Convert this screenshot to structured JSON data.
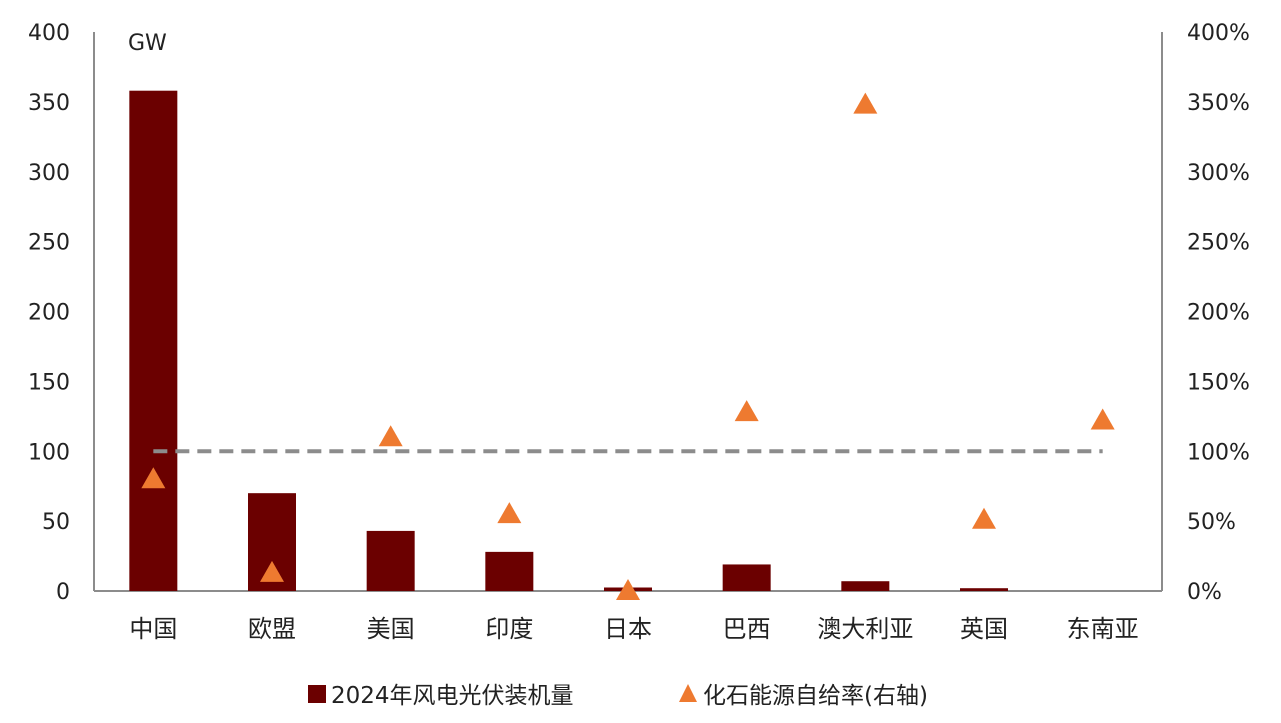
{
  "chart_data": {
    "type": "bar",
    "categories": [
      "中国",
      "欧盟",
      "美国",
      "印度",
      "日本",
      "巴西",
      "澳大利亚",
      "英国",
      "东南亚"
    ],
    "series": [
      {
        "name": "2024年风电光伏装机量",
        "type": "bar",
        "axis": "left",
        "color": "#6b0000",
        "values": [
          358,
          70,
          43,
          28,
          2.5,
          19,
          7,
          2,
          0
        ]
      },
      {
        "name": "化石能源自给率(右轴)",
        "type": "scatter",
        "marker": "triangle",
        "axis": "right",
        "color": "#ee7a30",
        "values": [
          80,
          13,
          110,
          55,
          0,
          128,
          348,
          51,
          122
        ]
      }
    ],
    "reference_line": {
      "axis": "right",
      "value": 100,
      "style": "dashed",
      "color": "#8c8c8c"
    },
    "left_axis": {
      "unit": "GW",
      "range": [
        0,
        400
      ],
      "ticks": [
        "0",
        "50",
        "100",
        "150",
        "200",
        "250",
        "300",
        "350",
        "400"
      ]
    },
    "right_axis": {
      "range": [
        0,
        400
      ],
      "ticks": [
        "0%",
        "50%",
        "100%",
        "150%",
        "200%",
        "250%",
        "300%",
        "350%",
        "400%"
      ]
    },
    "grid": false,
    "legend_position": "bottom"
  }
}
